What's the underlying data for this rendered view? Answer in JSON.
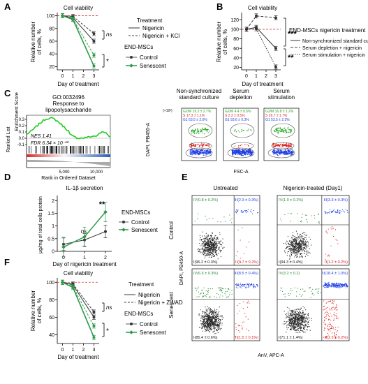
{
  "panel_labels": [
    "A",
    "B",
    "C",
    "D",
    "E",
    "F"
  ],
  "colors": {
    "control": "#333333",
    "senescent": "#2e9a4a",
    "ref": "#d9363e",
    "enrich": "#22cc22",
    "g1": "#1f3fe6",
    "s": "#e02020",
    "g2m": "#1fa81f",
    "r1": "#2c8a3a",
    "r2": "#1f3fe6",
    "r3": "#111111",
    "r4": "#e02020"
  },
  "panelA": {
    "title": "Cell viability",
    "ylabel": "Relative number\nof cells, %",
    "xlabel": "Day of treatment",
    "treatment": {
      "title": "Treatment",
      "items": [
        "Nigericin",
        "Nigericin + KCl"
      ]
    },
    "group": {
      "title": "END-MSCs",
      "items": [
        "Control",
        "Senescent"
      ]
    },
    "sig": [
      "ns",
      "*"
    ]
  },
  "panelB": {
    "title": "Cell viability",
    "ylabel": "Relative number\nof cells, %",
    "xlabel": "Day of treatment",
    "legend_title": "END-MSCs nigericin treatment",
    "items": [
      "Non-synchronized standard culture",
      "Serum depletion + nigericin",
      "Serum stimulation + nigericin"
    ],
    "sig": [
      "***",
      "**"
    ]
  },
  "panelC": {
    "title": "GO:0032496\nResponse to\nlipopolysaccharide",
    "ylabel": "Enrichment Score",
    "ylabel2": "Ranked List",
    "nes": "NES 1.41",
    "fdr": "FDR 6.34 × 10⁻¹²",
    "xlabel": "Rank in Ordered Dataset",
    "ticks": [
      "5,000",
      "10,000"
    ]
  },
  "panelC2": {
    "ylabel": "DAPI, PB450-A",
    "xlabel": "FSC-A",
    "unit": "(×10³)",
    "plots": [
      {
        "title": "Non-synchronized\nstandard culture",
        "g2m": "G2/M 19.2 ± 2.7%",
        "s": "S 17.3 ± 1.1%",
        "g1": "G1 63.5 ± 2.0%"
      },
      {
        "title": "Serum\ndepletion",
        "g2m": "G2/M 4.4 ± 0.5%",
        "s": "S 2.3 ± 0.5%",
        "g1": "G1 93.6 ± 0.3%"
      },
      {
        "title": "Serum\nstimulation",
        "g2m": "G2/M 16.8 ± 1.2%",
        "s": "S 29.7 ± 1.7%",
        "g1": "G1 53.5 ± 2.3%"
      }
    ]
  },
  "panelD": {
    "title": "IL-1β secretion",
    "ylabel": "µg/mg of total cells protein",
    "xlabel": "Day of nigericin treatment",
    "legend_title": "END-MSCs",
    "items": [
      "Control",
      "Senescent"
    ],
    "sig": [
      "ns",
      "**"
    ]
  },
  "panelE": {
    "col_titles": [
      "Untreated",
      "Nigericin-treated (Day1)"
    ],
    "row_titles": [
      "Control",
      "Senescent"
    ],
    "ylabel": "DAPI, PB450-A",
    "xlabel": "AnV, APC-A",
    "quads": [
      {
        "iv": "IV(0.8 ± 0.2%)",
        "iii": "III(2.3 ± 0.3%)",
        "i": "I(96.2 ± 0.3%)",
        "ii": "II(0.7 ± 0.2%)"
      },
      {
        "iv": "IV(1.9 ± 0.2%)",
        "iii": "III(3.3 ± 0.3%)",
        "i": "I(94.3 ± 0.4%)",
        "ii": "II(1.2 ± 0.2%)"
      },
      {
        "iv": "IV(6.6 ± 0.3%)",
        "iii": "III(8.5 ± 0.4%)",
        "i": "I(85.4 ± 0.6%)",
        "ii": "II(1.5 ± 0.1%)"
      },
      {
        "iv": "IV(3.2 ± 0.2)",
        "iii": "III(18.4 ± 1.0%)",
        "i": "I(71.1 ± 1.4%)",
        "ii": "II(7.3 ± 0.2%)"
      }
    ]
  },
  "panelF": {
    "title": "Cell viability",
    "ylabel": "Relative number\nof cells, %",
    "xlabel": "Day of treatment",
    "treatment": {
      "title": "Treatment",
      "items": [
        "Nigericin",
        "Nigericin + Z-VAD"
      ]
    },
    "group": {
      "title": "END-MSCs",
      "items": [
        "Control",
        "Senescent"
      ]
    },
    "sig": [
      "ns",
      "*"
    ]
  },
  "chart_data": [
    {
      "panel": "A",
      "type": "line",
      "title": "Cell viability",
      "xlabel": "Day of treatment",
      "ylabel": "Relative number of cells, %",
      "x": [
        0,
        1,
        2,
        3
      ],
      "ylim": [
        15,
        105
      ],
      "yticks": [
        20,
        40,
        60,
        80,
        100
      ],
      "reference_line": 100,
      "series": [
        {
          "name": "Control, Nigericin",
          "x": [
            0,
            1,
            3
          ],
          "values": [
            100,
            97,
            60
          ]
        },
        {
          "name": "Control, Nigericin + KCl",
          "x": [
            0,
            1,
            3
          ],
          "values": [
            100,
            99,
            72
          ]
        },
        {
          "name": "Senescent, Nigericin",
          "x": [
            0,
            1,
            3
          ],
          "values": [
            100,
            94,
            21
          ]
        },
        {
          "name": "Senescent, Nigericin + KCl",
          "x": [
            0,
            1,
            3
          ],
          "values": [
            100,
            95,
            38
          ]
        }
      ]
    },
    {
      "panel": "B",
      "type": "line",
      "title": "Cell viability",
      "xlabel": "Day of treatment",
      "ylabel": "Relative number of cells, %",
      "x": [
        0,
        1,
        2,
        3
      ],
      "ylim": [
        15,
        135
      ],
      "yticks": [
        20,
        40,
        60,
        80,
        100,
        120
      ],
      "reference_line": 100,
      "series": [
        {
          "name": "Non-synchronized standard culture",
          "x": [
            0,
            1,
            3
          ],
          "values": [
            100,
            104,
            60
          ]
        },
        {
          "name": "Serum depletion + nigericin",
          "x": [
            0,
            1,
            3
          ],
          "values": [
            100,
            128,
            124
          ]
        },
        {
          "name": "Serum stimulation + nigericin",
          "x": [
            0,
            1,
            3
          ],
          "values": [
            100,
            101,
            21
          ]
        }
      ]
    },
    {
      "panel": "D",
      "type": "line",
      "title": "IL-1β secretion",
      "xlabel": "Day of nigericin treatment",
      "ylabel": "µg/mg of total cells protein",
      "x": [
        0,
        1,
        2
      ],
      "ylim": [
        0,
        2.2
      ],
      "yticks": [
        0,
        0.5,
        1,
        1.5,
        2
      ],
      "series": [
        {
          "name": "Control",
          "values": [
            0.28,
            0.45,
            0.78
          ]
        },
        {
          "name": "Senescent",
          "values": [
            0.17,
            0.57,
            1.55
          ]
        }
      ]
    },
    {
      "panel": "F",
      "type": "line",
      "title": "Cell viability",
      "xlabel": "Day of treatment",
      "ylabel": "Relative number of cells, %",
      "x": [
        0,
        1,
        2,
        3
      ],
      "ylim": [
        30,
        105
      ],
      "yticks": [
        40,
        60,
        80,
        100
      ],
      "reference_line": 100,
      "series": [
        {
          "name": "Control, Nigericin",
          "x": [
            0,
            1,
            3
          ],
          "values": [
            100,
            97,
            60
          ]
        },
        {
          "name": "Control, Nigericin + Z-VAD",
          "x": [
            0,
            1,
            3
          ],
          "values": [
            100,
            98,
            66
          ]
        },
        {
          "name": "Senescent, Nigericin",
          "x": [
            0,
            1,
            3
          ],
          "values": [
            100,
            94,
            37
          ]
        },
        {
          "name": "Senescent, Nigericin + Z-VAD",
          "x": [
            0,
            1,
            3
          ],
          "values": [
            100,
            95,
            50
          ]
        }
      ]
    }
  ]
}
